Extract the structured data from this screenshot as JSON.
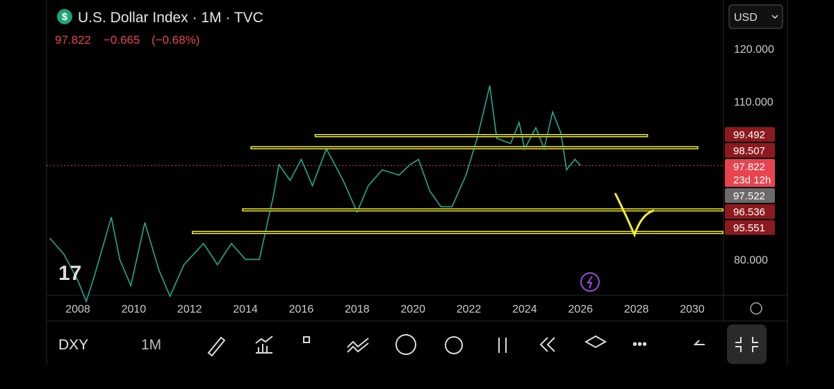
{
  "header": {
    "title": "U.S. Dollar Index · 1M · TVC",
    "price": "97.822",
    "change": "−0.665",
    "change_pct": "(−0.68%)",
    "currency": "USD"
  },
  "toolbar": {
    "symbol": "DXY",
    "interval": "1M"
  },
  "chart_data": {
    "type": "line",
    "color": "#22ab94",
    "x": [
      2007.0,
      2007.5,
      2008.0,
      2008.3,
      2008.6,
      2009.2,
      2009.5,
      2009.9,
      2010.4,
      2010.9,
      2011.3,
      2011.8,
      2012.5,
      2013.0,
      2013.5,
      2014.0,
      2014.5,
      2015.0,
      2015.2,
      2015.6,
      2016.0,
      2016.4,
      2016.9,
      2017.5,
      2018.0,
      2018.4,
      2018.9,
      2019.5,
      2019.9,
      2020.2,
      2020.6,
      2021.0,
      2021.4,
      2021.9,
      2022.3,
      2022.75,
      2023.0,
      2023.5,
      2023.8,
      2024.0,
      2024.4,
      2024.7,
      2025.0,
      2025.3,
      2025.5,
      2025.8,
      2026.0
    ],
    "values": [
      84,
      81,
      76,
      72,
      77,
      88,
      80,
      75,
      87,
      78,
      73,
      79,
      83,
      79,
      83,
      80,
      80,
      92,
      98,
      95,
      99,
      94,
      101,
      95,
      89,
      94,
      97,
      96,
      98,
      99,
      93,
      90,
      90,
      96,
      103,
      113,
      103,
      102,
      106,
      101,
      105,
      101,
      108,
      104,
      97,
      99,
      97.822
    ],
    "xlim": [
      2006.88,
      2031.12
    ],
    "ylim": [
      73.19,
      129.26
    ],
    "xticks": [
      2008,
      2010,
      2012,
      2014,
      2016,
      2018,
      2020,
      2022,
      2024,
      2026,
      2028,
      2030
    ],
    "yticks": [
      {
        "value": 120,
        "label": "120.000"
      },
      {
        "value": 110,
        "label": "110.000"
      },
      {
        "value": 80,
        "label": "80.000"
      }
    ],
    "drawn_lines": [
      {
        "value": 103.5,
        "from": 2016.5,
        "to": 2028.4
      },
      {
        "value": 101.2,
        "from": 2014.2,
        "to": 2030.2
      },
      {
        "value": 89.4,
        "from": 2013.9,
        "to": 2031.1
      },
      {
        "value": 85.1,
        "from": 2012.1,
        "to": 2031.1
      }
    ],
    "current_price": 97.822,
    "price_tags": [
      {
        "value": 99.492,
        "label": "99.492",
        "color": "#8b1a1f"
      },
      {
        "value": 98.507,
        "label": "98.507",
        "color": "#8b1a1f"
      },
      {
        "value": 97.822,
        "label": "97.822",
        "sub": "23d 12h",
        "color": "#e8444f"
      },
      {
        "value": 97.522,
        "label": "97.522",
        "color": "#6b6b6b"
      },
      {
        "value": 96.536,
        "label": "96.536",
        "color": "#8b1a1f"
      },
      {
        "value": 95.551,
        "label": "95.551",
        "color": "#8b1a1f"
      }
    ]
  }
}
